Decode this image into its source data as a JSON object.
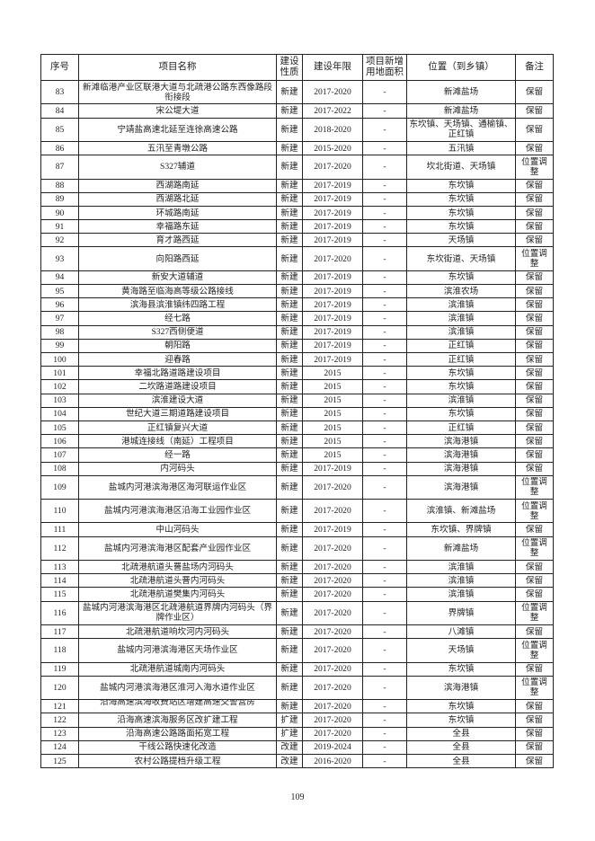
{
  "headers": [
    "序号",
    "项目名称",
    "建设性质",
    "建设年限",
    "项目新增用地面积",
    "位置（到乡镇）",
    "备注"
  ],
  "rows": [
    [
      "83",
      "新滩临港产业区联港大道与北疏港公路东西像路段衔接段",
      "新建",
      "2017-2020",
      "-",
      "新滩盐场",
      "保留"
    ],
    [
      "84",
      "宋公堤大道",
      "新建",
      "2017-2022",
      "-",
      "新滩盐场",
      "保留"
    ],
    [
      "85",
      "宁靖盐高速北延至连徐高速公路",
      "新建",
      "2018-2020",
      "-",
      "东坎镇、天场镇、通榆镇、正红镇",
      "保留"
    ],
    [
      "86",
      "五汛至青墩公路",
      "新建",
      "2015-2020",
      "-",
      "五汛镇",
      "保留"
    ],
    [
      "87",
      "S327辅道",
      "新建",
      "2017-2020",
      "-",
      "坎北街道、天场镇",
      "位置调整"
    ],
    [
      "88",
      "西湖路南延",
      "新建",
      "2017-2019",
      "-",
      "东坎镇",
      "保留"
    ],
    [
      "89",
      "西湖路北延",
      "新建",
      "2017-2019",
      "-",
      "东坎镇",
      "保留"
    ],
    [
      "90",
      "环城路南延",
      "新建",
      "2017-2019",
      "-",
      "东坎镇",
      "保留"
    ],
    [
      "91",
      "幸福路东延",
      "新建",
      "2017-2019",
      "-",
      "东坎镇",
      "保留"
    ],
    [
      "92",
      "育才路西延",
      "新建",
      "2017-2019",
      "-",
      "天场镇",
      "保留"
    ],
    [
      "93",
      "向阳路西延",
      "新建",
      "2017-2020",
      "-",
      "东坎街道、天场镇",
      "位置调整"
    ],
    [
      "94",
      "新安大道辅道",
      "新建",
      "2017-2019",
      "-",
      "东坎镇",
      "保留"
    ],
    [
      "95",
      "黄海路至临海高等级公路接线",
      "新建",
      "2017-2019",
      "-",
      "滨淮农场",
      "保留"
    ],
    [
      "96",
      "滨海县滨淮镇纬四路工程",
      "新建",
      "2017-2019",
      "-",
      "滨淮镇",
      "保留"
    ],
    [
      "97",
      "经七路",
      "新建",
      "2017-2019",
      "-",
      "滨淮镇",
      "保留"
    ],
    [
      "98",
      "S327西侧便道",
      "新建",
      "2017-2019",
      "-",
      "滨淮镇",
      "保留"
    ],
    [
      "99",
      "朝阳路",
      "新建",
      "2017-2019",
      "-",
      "正红镇",
      "保留"
    ],
    [
      "100",
      "迎春路",
      "新建",
      "2017-2019",
      "-",
      "正红镇",
      "保留"
    ],
    [
      "101",
      "幸福北路道路建设项目",
      "新建",
      "2015",
      "-",
      "东坎镇",
      "保留"
    ],
    [
      "102",
      "二坎路道路建设项目",
      "新建",
      "2015",
      "-",
      "东坎镇",
      "保留"
    ],
    [
      "103",
      "滨淮建设大道",
      "新建",
      "2015",
      "-",
      "滨淮镇",
      "保留"
    ],
    [
      "104",
      "世纪大道三期道路建设项目",
      "新建",
      "2015",
      "-",
      "东坎镇",
      "保留"
    ],
    [
      "105",
      "正红镇复兴大道",
      "新建",
      "2015",
      "-",
      "正红镇",
      "保留"
    ],
    [
      "106",
      "港城连接线（南延）工程项目",
      "新建",
      "2015",
      "-",
      "滨海港镇",
      "保留"
    ],
    [
      "107",
      "经一路",
      "新建",
      "2015",
      "-",
      "滨海港镇",
      "保留"
    ],
    [
      "108",
      "内河码头",
      "新建",
      "2017-2019",
      "-",
      "滨海港镇",
      "保留"
    ],
    [
      "109",
      "盐城内河港滨海港区海河联运作业区",
      "新建",
      "2017-2020",
      "-",
      "滨海港镇",
      "位置调整"
    ],
    [
      "110",
      "盐城内河港滨海港区沿海工业园作业区",
      "新建",
      "2017-2020",
      "-",
      "滨淮镇、新滩盐场",
      "位置调整"
    ],
    [
      "111",
      "中山河码头",
      "新建",
      "2017-2019",
      "-",
      "东坎镇、界牌镇",
      "保留"
    ],
    [
      "112",
      "盐城内河港滨海港区配套产业园作业区",
      "新建",
      "2017-2020",
      "-",
      "新滩盐场",
      "位置调整"
    ],
    [
      "113",
      "北疏港航道头罾盐场内河码头",
      "新建",
      "2017-2020",
      "-",
      "滨淮镇",
      "保留"
    ],
    [
      "114",
      "北疏港航道头罾内河码头",
      "新建",
      "2017-2020",
      "-",
      "滨淮镇",
      "保留"
    ],
    [
      "115",
      "北疏港航道樊集内河码头",
      "新建",
      "2017-2020",
      "-",
      "滨淮镇",
      "保留"
    ],
    [
      "116",
      "盐城内河港滨海港区北疏港航道界牌内河码头（界牌作业区）",
      "新建",
      "2017-2020",
      "-",
      "界牌镇",
      "位置调整"
    ],
    [
      "117",
      "北疏港航道响坎河内河码头",
      "新建",
      "2017-2020",
      "-",
      "八滩镇",
      "保留"
    ],
    [
      "118",
      "盐城内河港滨海港区天场作业区",
      "新建",
      "2017-2020",
      "-",
      "天场镇",
      "位置调整"
    ],
    [
      "119",
      "北疏港航道城南内河码头",
      "新建",
      "2017-2020",
      "-",
      "东坎镇",
      "保留"
    ],
    [
      "120",
      "盐城内河港滨海港区淮河入海水道作业区",
      "新建",
      "2017-2020",
      "-",
      "滨海港镇",
      "位置调整"
    ],
    [
      "121",
      "沿海高速滨海收费站区增建高速交警营房",
      "新建",
      "2017-2020",
      "-",
      "东坎镇",
      "保留"
    ],
    [
      "122",
      "沿海高速滨海服务区改扩建工程",
      "扩建",
      "2017-2020",
      "-",
      "东坎镇",
      "保留"
    ],
    [
      "123",
      "沿海高速公路路面拓宽工程",
      "扩建",
      "2017-2020",
      "-",
      "全县",
      "保留"
    ],
    [
      "124",
      "干线公路快速化改造",
      "改建",
      "2019-2024",
      "-",
      "全县",
      "保留"
    ],
    [
      "125",
      "农村公路提档升级工程",
      "改建",
      "2016-2020",
      "-",
      "全县",
      "保留"
    ]
  ],
  "page_number": "109"
}
